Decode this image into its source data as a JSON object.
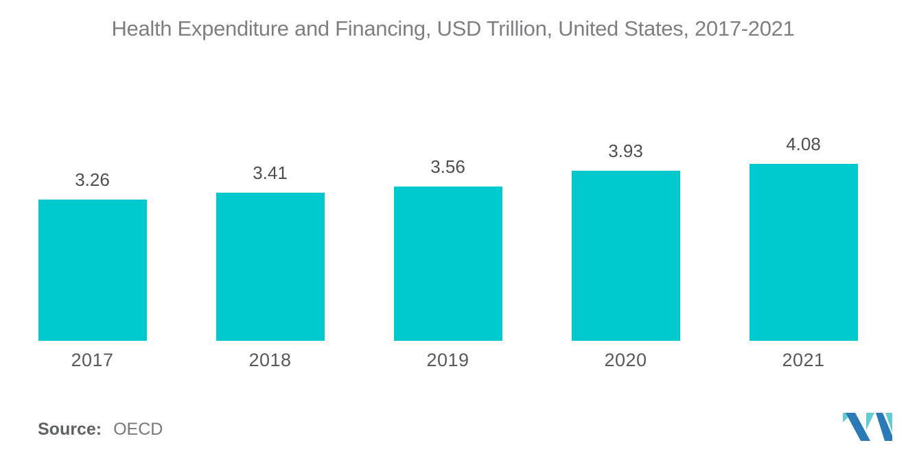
{
  "chart_data": {
    "type": "bar",
    "title": "Health Expenditure and Financing, USD Trillion, United States, 2017-2021",
    "categories": [
      "2017",
      "2018",
      "2019",
      "2020",
      "2021"
    ],
    "values": [
      3.26,
      3.41,
      3.56,
      3.93,
      4.08
    ],
    "xlabel": "",
    "ylabel": "",
    "ylim": [
      0,
      4.08
    ],
    "grid": false,
    "legend": false,
    "value_labels_shown": true,
    "bar_color": "#00C9CE",
    "title_color": "#7E7F81",
    "value_label_color": "#4D4E50",
    "category_label_color": "#58595B"
  },
  "footer": {
    "source_label": "Source:",
    "source_value": "OECD"
  },
  "logo": {
    "blue": "#2B7AB6",
    "teal": "#65CBD2"
  }
}
